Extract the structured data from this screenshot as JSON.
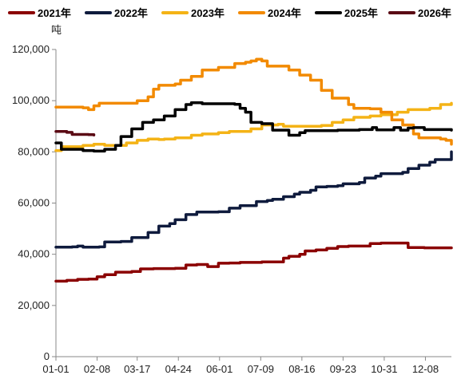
{
  "chart_data": {
    "type": "line",
    "unit_label": "吨",
    "xlabel": "",
    "ylabel": "",
    "ylim": [
      0,
      120000
    ],
    "y_ticks": [
      0,
      20000,
      40000,
      60000,
      80000,
      100000,
      120000
    ],
    "y_tick_labels": [
      "0",
      "20,000",
      "40,000",
      "60,000",
      "80,000",
      "100,000",
      "120,000"
    ],
    "x_range_days": [
      0,
      365
    ],
    "x_ticks": [
      {
        "day": 0,
        "label": "01-01"
      },
      {
        "day": 38,
        "label": "02-08"
      },
      {
        "day": 75,
        "label": "03-17"
      },
      {
        "day": 113,
        "label": "04-24"
      },
      {
        "day": 151,
        "label": "06-01"
      },
      {
        "day": 189,
        "label": "07-09"
      },
      {
        "day": 227,
        "label": "08-16"
      },
      {
        "day": 265,
        "label": "09-23"
      },
      {
        "day": 303,
        "label": "10-31"
      },
      {
        "day": 341,
        "label": "12-08"
      }
    ],
    "legend_position": "top",
    "series": [
      {
        "name": "2021年",
        "color": "#8b0000",
        "points": [
          [
            0,
            29500
          ],
          [
            10,
            29800
          ],
          [
            20,
            30200
          ],
          [
            30,
            30300
          ],
          [
            38,
            31200
          ],
          [
            45,
            32000
          ],
          [
            55,
            33000
          ],
          [
            70,
            33300
          ],
          [
            78,
            34300
          ],
          [
            90,
            34400
          ],
          [
            110,
            34500
          ],
          [
            120,
            35800
          ],
          [
            130,
            36000
          ],
          [
            140,
            35200
          ],
          [
            150,
            36500
          ],
          [
            160,
            36600
          ],
          [
            170,
            36800
          ],
          [
            190,
            37000
          ],
          [
            205,
            37000
          ],
          [
            210,
            38500
          ],
          [
            215,
            39200
          ],
          [
            225,
            40000
          ],
          [
            230,
            41300
          ],
          [
            240,
            41700
          ],
          [
            250,
            42300
          ],
          [
            260,
            43000
          ],
          [
            270,
            43200
          ],
          [
            285,
            43200
          ],
          [
            290,
            44200
          ],
          [
            300,
            44400
          ],
          [
            320,
            44400
          ],
          [
            325,
            42600
          ],
          [
            340,
            42500
          ],
          [
            365,
            42500
          ]
        ]
      },
      {
        "name": "2022年",
        "color": "#0f1b3d",
        "points": [
          [
            0,
            42800
          ],
          [
            15,
            42900
          ],
          [
            20,
            43200
          ],
          [
            25,
            42800
          ],
          [
            40,
            42900
          ],
          [
            45,
            44800
          ],
          [
            60,
            45000
          ],
          [
            70,
            46500
          ],
          [
            85,
            48500
          ],
          [
            95,
            51000
          ],
          [
            105,
            52000
          ],
          [
            110,
            53500
          ],
          [
            120,
            55500
          ],
          [
            130,
            56500
          ],
          [
            145,
            56500
          ],
          [
            150,
            56600
          ],
          [
            160,
            58000
          ],
          [
            170,
            59000
          ],
          [
            180,
            59000
          ],
          [
            185,
            60600
          ],
          [
            195,
            61000
          ],
          [
            200,
            61500
          ],
          [
            210,
            62500
          ],
          [
            220,
            63500
          ],
          [
            225,
            64200
          ],
          [
            235,
            65000
          ],
          [
            240,
            66300
          ],
          [
            250,
            66500
          ],
          [
            260,
            66800
          ],
          [
            265,
            67500
          ],
          [
            280,
            68000
          ],
          [
            285,
            69800
          ],
          [
            295,
            70500
          ],
          [
            300,
            71500
          ],
          [
            320,
            72000
          ],
          [
            325,
            73500
          ],
          [
            335,
            74800
          ],
          [
            345,
            76000
          ],
          [
            350,
            77000
          ],
          [
            360,
            77000
          ],
          [
            365,
            80000
          ]
        ]
      },
      {
        "name": "2023年",
        "color": "#f4b316",
        "points": [
          [
            0,
            80500
          ],
          [
            5,
            82000
          ],
          [
            15,
            82000
          ],
          [
            25,
            82500
          ],
          [
            35,
            83000
          ],
          [
            45,
            82500
          ],
          [
            60,
            82500
          ],
          [
            65,
            83500
          ],
          [
            75,
            84500
          ],
          [
            85,
            85000
          ],
          [
            95,
            84800
          ],
          [
            100,
            85000
          ],
          [
            110,
            85500
          ],
          [
            125,
            86500
          ],
          [
            135,
            87000
          ],
          [
            150,
            87500
          ],
          [
            160,
            88000
          ],
          [
            180,
            89000
          ],
          [
            190,
            90500
          ],
          [
            205,
            90800
          ],
          [
            210,
            90000
          ],
          [
            230,
            90000
          ],
          [
            245,
            90300
          ],
          [
            255,
            91500
          ],
          [
            265,
            92500
          ],
          [
            275,
            93500
          ],
          [
            290,
            94000
          ],
          [
            300,
            94500
          ],
          [
            315,
            95500
          ],
          [
            325,
            96500
          ],
          [
            345,
            97000
          ],
          [
            355,
            98500
          ],
          [
            365,
            99000
          ]
        ]
      },
      {
        "name": "2024年",
        "color": "#f28a00",
        "points": [
          [
            0,
            97500
          ],
          [
            15,
            97500
          ],
          [
            25,
            97200
          ],
          [
            30,
            96500
          ],
          [
            35,
            98000
          ],
          [
            40,
            99000
          ],
          [
            55,
            99000
          ],
          [
            70,
            99000
          ],
          [
            75,
            100000
          ],
          [
            85,
            101500
          ],
          [
            90,
            104500
          ],
          [
            95,
            106000
          ],
          [
            110,
            106500
          ],
          [
            115,
            108000
          ],
          [
            125,
            109500
          ],
          [
            135,
            112000
          ],
          [
            150,
            113000
          ],
          [
            165,
            114500
          ],
          [
            175,
            115000
          ],
          [
            180,
            115500
          ],
          [
            185,
            116200
          ],
          [
            190,
            115500
          ],
          [
            195,
            113500
          ],
          [
            210,
            113500
          ],
          [
            215,
            112000
          ],
          [
            225,
            110000
          ],
          [
            235,
            108000
          ],
          [
            245,
            104000
          ],
          [
            255,
            101000
          ],
          [
            270,
            98500
          ],
          [
            275,
            97000
          ],
          [
            290,
            96800
          ],
          [
            300,
            95500
          ],
          [
            310,
            92500
          ],
          [
            320,
            90500
          ],
          [
            330,
            87000
          ],
          [
            335,
            85500
          ],
          [
            345,
            85500
          ],
          [
            355,
            85000
          ],
          [
            360,
            84500
          ],
          [
            365,
            83000
          ]
        ]
      },
      {
        "name": "2025年",
        "color": "#000000",
        "points": [
          [
            0,
            83500
          ],
          [
            5,
            81000
          ],
          [
            15,
            81000
          ],
          [
            25,
            80500
          ],
          [
            35,
            80300
          ],
          [
            45,
            81000
          ],
          [
            55,
            82500
          ],
          [
            60,
            86000
          ],
          [
            70,
            89000
          ],
          [
            80,
            91500
          ],
          [
            90,
            92500
          ],
          [
            100,
            94000
          ],
          [
            110,
            96500
          ],
          [
            120,
            98500
          ],
          [
            125,
            99200
          ],
          [
            135,
            98800
          ],
          [
            145,
            98800
          ],
          [
            160,
            98800
          ],
          [
            165,
            98600
          ],
          [
            170,
            97000
          ],
          [
            175,
            95500
          ],
          [
            180,
            91500
          ],
          [
            190,
            91000
          ],
          [
            200,
            88500
          ],
          [
            215,
            86500
          ],
          [
            225,
            87500
          ],
          [
            230,
            88300
          ],
          [
            245,
            88300
          ],
          [
            260,
            88500
          ],
          [
            280,
            88700
          ],
          [
            290,
            88700
          ],
          [
            292,
            89500
          ],
          [
            296,
            88600
          ],
          [
            305,
            88600
          ],
          [
            312,
            89500
          ],
          [
            318,
            88500
          ],
          [
            325,
            89300
          ],
          [
            330,
            89500
          ],
          [
            340,
            88700
          ],
          [
            355,
            88700
          ],
          [
            365,
            88500
          ]
        ]
      },
      {
        "name": "2026年",
        "color": "#5a0a14",
        "points": [
          [
            0,
            88000
          ],
          [
            10,
            87600
          ],
          [
            15,
            86800
          ],
          [
            25,
            86800
          ],
          [
            30,
            86700
          ],
          [
            35,
            86600
          ]
        ]
      }
    ]
  }
}
